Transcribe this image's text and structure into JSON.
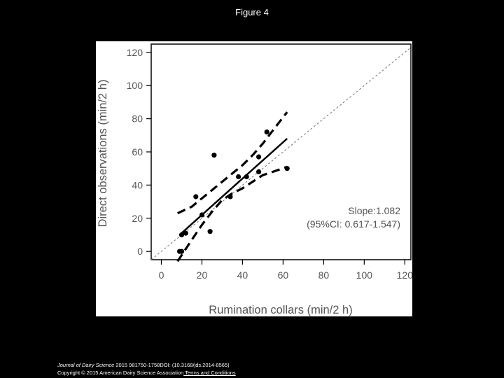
{
  "slide": {
    "title": "Figure 4"
  },
  "footer": {
    "journal": "Journal of Dairy Science",
    "citation": " 2015 981750-1758DOI: (10.3168/jds.2014-8565)",
    "copyright": "Copyright © 2015 American Dairy Science Association",
    "link": " Terms and Conditions"
  },
  "chart_data": {
    "type": "scatter",
    "title": "",
    "xlabel": "Rumination collars (min/2 h)",
    "ylabel": "Direct observations (min/2 h)",
    "xlim": [
      -5,
      123
    ],
    "ylim": [
      -5,
      125
    ],
    "xticks": [
      0,
      20,
      40,
      60,
      80,
      100,
      120
    ],
    "yticks": [
      0,
      20,
      40,
      60,
      80,
      100,
      120
    ],
    "grid": false,
    "points": [
      {
        "x": 9,
        "y": 0
      },
      {
        "x": 10,
        "y": 0
      },
      {
        "x": 10,
        "y": 10
      },
      {
        "x": 12,
        "y": 11
      },
      {
        "x": 17,
        "y": 33
      },
      {
        "x": 20,
        "y": 22
      },
      {
        "x": 24,
        "y": 12
      },
      {
        "x": 26,
        "y": 58
      },
      {
        "x": 34,
        "y": 33
      },
      {
        "x": 38,
        "y": 45
      },
      {
        "x": 42,
        "y": 45
      },
      {
        "x": 48,
        "y": 48
      },
      {
        "x": 48,
        "y": 57
      },
      {
        "x": 52,
        "y": 72
      },
      {
        "x": 62,
        "y": 50
      }
    ],
    "regression_line": {
      "x": [
        9,
        62
      ],
      "y": [
        10,
        68
      ]
    },
    "confidence_upper": {
      "x": [
        8,
        15,
        20,
        25,
        30,
        35,
        40,
        45,
        50,
        55,
        62
      ],
      "y": [
        23,
        27,
        32,
        37,
        42,
        47,
        52,
        58,
        65,
        73,
        84
      ]
    },
    "confidence_lower": {
      "x": [
        8,
        15,
        20,
        25,
        30,
        35,
        40,
        45,
        50,
        55,
        62
      ],
      "y": [
        -6,
        7,
        16,
        24,
        31,
        35,
        38,
        42,
        46,
        48,
        51
      ]
    },
    "identity_line": {
      "x": [
        -5,
        123
      ],
      "y": [
        -5,
        123
      ]
    },
    "annotation": {
      "line1": "Slope:1.082",
      "line2": "(95%CI: 0.617-1.547)"
    }
  }
}
